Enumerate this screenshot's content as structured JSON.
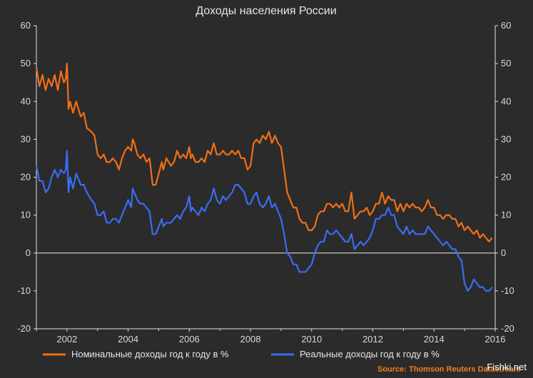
{
  "chart_data": {
    "type": "line",
    "title": "Доходы населения России",
    "ylim": [
      -20,
      60
    ],
    "xlim": [
      2001.0,
      2016.0
    ],
    "y_ticks": [
      -20,
      -10,
      0,
      10,
      20,
      30,
      40,
      50,
      60
    ],
    "x_ticks": [
      2002,
      2004,
      2006,
      2008,
      2010,
      2012,
      2014,
      2016
    ],
    "grid": false,
    "zero_line": true,
    "legend_position": "bottom",
    "colors": {
      "background": "#2b2b2b",
      "axis": "#e0e0e0",
      "text": "#d9d9d9"
    },
    "series": [
      {
        "name": "Номинальные доходы год к году в %",
        "color": "#f36f16",
        "points": [
          [
            2001.0,
            49
          ],
          [
            2001.1,
            44
          ],
          [
            2001.2,
            47
          ],
          [
            2001.3,
            43
          ],
          [
            2001.4,
            46
          ],
          [
            2001.5,
            44
          ],
          [
            2001.6,
            47
          ],
          [
            2001.7,
            43
          ],
          [
            2001.8,
            48
          ],
          [
            2001.9,
            45
          ],
          [
            2001.96,
            46
          ],
          [
            2002.0,
            50
          ],
          [
            2002.05,
            38
          ],
          [
            2002.1,
            40
          ],
          [
            2002.2,
            37
          ],
          [
            2002.3,
            40
          ],
          [
            2002.45,
            36
          ],
          [
            2002.55,
            37
          ],
          [
            2002.65,
            33
          ],
          [
            2002.8,
            32
          ],
          [
            2002.9,
            31
          ],
          [
            2003.0,
            26
          ],
          [
            2003.1,
            25
          ],
          [
            2003.2,
            26
          ],
          [
            2003.3,
            24
          ],
          [
            2003.4,
            24
          ],
          [
            2003.5,
            25
          ],
          [
            2003.6,
            24
          ],
          [
            2003.7,
            22
          ],
          [
            2003.8,
            25
          ],
          [
            2003.9,
            27
          ],
          [
            2004.0,
            28
          ],
          [
            2004.1,
            27
          ],
          [
            2004.15,
            30
          ],
          [
            2004.2,
            29
          ],
          [
            2004.3,
            26
          ],
          [
            2004.4,
            25
          ],
          [
            2004.5,
            26
          ],
          [
            2004.6,
            24
          ],
          [
            2004.7,
            25
          ],
          [
            2004.8,
            18
          ],
          [
            2004.9,
            18
          ],
          [
            2005.0,
            21
          ],
          [
            2005.1,
            24
          ],
          [
            2005.15,
            22
          ],
          [
            2005.25,
            25
          ],
          [
            2005.4,
            23
          ],
          [
            2005.5,
            24
          ],
          [
            2005.6,
            27
          ],
          [
            2005.7,
            25
          ],
          [
            2005.8,
            26
          ],
          [
            2005.9,
            25
          ],
          [
            2006.0,
            28
          ],
          [
            2006.05,
            25
          ],
          [
            2006.1,
            26
          ],
          [
            2006.2,
            24
          ],
          [
            2006.3,
            24
          ],
          [
            2006.4,
            25
          ],
          [
            2006.5,
            24
          ],
          [
            2006.6,
            27
          ],
          [
            2006.7,
            26
          ],
          [
            2006.8,
            29
          ],
          [
            2006.9,
            26
          ],
          [
            2007.0,
            26
          ],
          [
            2007.1,
            27
          ],
          [
            2007.2,
            26
          ],
          [
            2007.3,
            26
          ],
          [
            2007.4,
            27
          ],
          [
            2007.5,
            26
          ],
          [
            2007.6,
            27
          ],
          [
            2007.7,
            25
          ],
          [
            2007.8,
            25
          ],
          [
            2007.9,
            22
          ],
          [
            2008.0,
            23
          ],
          [
            2008.1,
            29
          ],
          [
            2008.2,
            30
          ],
          [
            2008.3,
            29
          ],
          [
            2008.4,
            31
          ],
          [
            2008.5,
            30
          ],
          [
            2008.6,
            32
          ],
          [
            2008.7,
            29
          ],
          [
            2008.8,
            31
          ],
          [
            2008.9,
            29
          ],
          [
            2009.0,
            28
          ],
          [
            2009.1,
            22
          ],
          [
            2009.2,
            16
          ],
          [
            2009.3,
            14
          ],
          [
            2009.4,
            12
          ],
          [
            2009.5,
            12
          ],
          [
            2009.6,
            9
          ],
          [
            2009.7,
            8
          ],
          [
            2009.8,
            8
          ],
          [
            2009.9,
            6
          ],
          [
            2010.0,
            6
          ],
          [
            2010.1,
            7
          ],
          [
            2010.2,
            10
          ],
          [
            2010.3,
            11
          ],
          [
            2010.4,
            11
          ],
          [
            2010.5,
            13
          ],
          [
            2010.6,
            13
          ],
          [
            2010.7,
            12
          ],
          [
            2010.8,
            13
          ],
          [
            2010.9,
            12
          ],
          [
            2011.0,
            13
          ],
          [
            2011.1,
            11
          ],
          [
            2011.2,
            11
          ],
          [
            2011.3,
            16
          ],
          [
            2011.4,
            9
          ],
          [
            2011.5,
            10
          ],
          [
            2011.6,
            11
          ],
          [
            2011.7,
            11
          ],
          [
            2011.8,
            12
          ],
          [
            2011.9,
            10
          ],
          [
            2012.0,
            11
          ],
          [
            2012.1,
            13
          ],
          [
            2012.2,
            13
          ],
          [
            2012.3,
            16
          ],
          [
            2012.4,
            13
          ],
          [
            2012.5,
            15
          ],
          [
            2012.6,
            14
          ],
          [
            2012.7,
            14
          ],
          [
            2012.8,
            11
          ],
          [
            2012.9,
            13
          ],
          [
            2013.0,
            11
          ],
          [
            2013.1,
            13
          ],
          [
            2013.2,
            12
          ],
          [
            2013.3,
            13
          ],
          [
            2013.4,
            12
          ],
          [
            2013.5,
            12
          ],
          [
            2013.6,
            11
          ],
          [
            2013.7,
            12
          ],
          [
            2013.8,
            14
          ],
          [
            2013.9,
            12
          ],
          [
            2014.0,
            12
          ],
          [
            2014.1,
            10
          ],
          [
            2014.2,
            10
          ],
          [
            2014.3,
            9
          ],
          [
            2014.4,
            10
          ],
          [
            2014.5,
            10
          ],
          [
            2014.6,
            9
          ],
          [
            2014.7,
            9
          ],
          [
            2014.8,
            7
          ],
          [
            2014.9,
            8
          ],
          [
            2015.0,
            6
          ],
          [
            2015.1,
            7
          ],
          [
            2015.2,
            6
          ],
          [
            2015.3,
            5
          ],
          [
            2015.4,
            6
          ],
          [
            2015.5,
            4
          ],
          [
            2015.6,
            5
          ],
          [
            2015.7,
            4
          ],
          [
            2015.8,
            3
          ],
          [
            2015.9,
            4
          ]
        ]
      },
      {
        "name": "Реальные доходы год к году в %",
        "color": "#3a6df5",
        "points": [
          [
            2001.0,
            23
          ],
          [
            2001.1,
            19
          ],
          [
            2001.2,
            19
          ],
          [
            2001.3,
            16
          ],
          [
            2001.4,
            17
          ],
          [
            2001.5,
            20
          ],
          [
            2001.6,
            22
          ],
          [
            2001.7,
            20
          ],
          [
            2001.8,
            22
          ],
          [
            2001.9,
            21
          ],
          [
            2001.96,
            22
          ],
          [
            2002.0,
            27
          ],
          [
            2002.05,
            16
          ],
          [
            2002.1,
            20
          ],
          [
            2002.2,
            17
          ],
          [
            2002.3,
            21
          ],
          [
            2002.45,
            18
          ],
          [
            2002.55,
            18
          ],
          [
            2002.65,
            16
          ],
          [
            2002.8,
            14
          ],
          [
            2002.9,
            13
          ],
          [
            2003.0,
            10
          ],
          [
            2003.1,
            10
          ],
          [
            2003.2,
            11
          ],
          [
            2003.3,
            8
          ],
          [
            2003.4,
            8
          ],
          [
            2003.5,
            9
          ],
          [
            2003.6,
            9
          ],
          [
            2003.7,
            8
          ],
          [
            2003.8,
            10
          ],
          [
            2003.9,
            12
          ],
          [
            2004.0,
            14
          ],
          [
            2004.1,
            12
          ],
          [
            2004.15,
            17
          ],
          [
            2004.2,
            16
          ],
          [
            2004.3,
            14
          ],
          [
            2004.4,
            13
          ],
          [
            2004.5,
            13
          ],
          [
            2004.6,
            12
          ],
          [
            2004.7,
            11
          ],
          [
            2004.8,
            5
          ],
          [
            2004.9,
            5
          ],
          [
            2005.0,
            7
          ],
          [
            2005.1,
            9
          ],
          [
            2005.15,
            7
          ],
          [
            2005.25,
            8
          ],
          [
            2005.4,
            8
          ],
          [
            2005.5,
            9
          ],
          [
            2005.6,
            10
          ],
          [
            2005.7,
            9
          ],
          [
            2005.8,
            11
          ],
          [
            2005.9,
            12
          ],
          [
            2006.0,
            15
          ],
          [
            2006.05,
            11
          ],
          [
            2006.1,
            12
          ],
          [
            2006.2,
            11
          ],
          [
            2006.3,
            10
          ],
          [
            2006.4,
            12
          ],
          [
            2006.5,
            11
          ],
          [
            2006.6,
            13
          ],
          [
            2006.7,
            14
          ],
          [
            2006.8,
            17
          ],
          [
            2006.9,
            14
          ],
          [
            2007.0,
            13
          ],
          [
            2007.1,
            15
          ],
          [
            2007.2,
            14
          ],
          [
            2007.3,
            15
          ],
          [
            2007.4,
            16
          ],
          [
            2007.5,
            18
          ],
          [
            2007.6,
            18
          ],
          [
            2007.7,
            17
          ],
          [
            2007.8,
            16
          ],
          [
            2007.9,
            13
          ],
          [
            2008.0,
            13
          ],
          [
            2008.1,
            15
          ],
          [
            2008.2,
            16
          ],
          [
            2008.3,
            13
          ],
          [
            2008.4,
            12
          ],
          [
            2008.5,
            13
          ],
          [
            2008.6,
            15
          ],
          [
            2008.7,
            12
          ],
          [
            2008.8,
            13
          ],
          [
            2008.9,
            11
          ],
          [
            2009.0,
            9
          ],
          [
            2009.1,
            5
          ],
          [
            2009.2,
            0
          ],
          [
            2009.3,
            -1
          ],
          [
            2009.4,
            -3
          ],
          [
            2009.5,
            -3
          ],
          [
            2009.6,
            -5
          ],
          [
            2009.7,
            -5
          ],
          [
            2009.8,
            -5
          ],
          [
            2009.9,
            -4
          ],
          [
            2010.0,
            -3
          ],
          [
            2010.1,
            0
          ],
          [
            2010.2,
            2
          ],
          [
            2010.3,
            3
          ],
          [
            2010.4,
            3
          ],
          [
            2010.5,
            6
          ],
          [
            2010.6,
            5
          ],
          [
            2010.7,
            5
          ],
          [
            2010.8,
            6
          ],
          [
            2010.9,
            5
          ],
          [
            2011.0,
            4
          ],
          [
            2011.1,
            3
          ],
          [
            2011.2,
            3
          ],
          [
            2011.3,
            5
          ],
          [
            2011.4,
            1
          ],
          [
            2011.5,
            2
          ],
          [
            2011.6,
            3
          ],
          [
            2011.7,
            2
          ],
          [
            2011.8,
            3
          ],
          [
            2011.9,
            4
          ],
          [
            2012.0,
            6
          ],
          [
            2012.1,
            9
          ],
          [
            2012.2,
            9
          ],
          [
            2012.3,
            10
          ],
          [
            2012.4,
            10
          ],
          [
            2012.5,
            12
          ],
          [
            2012.6,
            10
          ],
          [
            2012.7,
            10
          ],
          [
            2012.8,
            7
          ],
          [
            2012.9,
            6
          ],
          [
            2013.0,
            5
          ],
          [
            2013.1,
            7
          ],
          [
            2013.2,
            5
          ],
          [
            2013.3,
            6
          ],
          [
            2013.4,
            5
          ],
          [
            2013.5,
            5
          ],
          [
            2013.6,
            5
          ],
          [
            2013.7,
            5
          ],
          [
            2013.8,
            7
          ],
          [
            2013.9,
            6
          ],
          [
            2014.0,
            5
          ],
          [
            2014.1,
            4
          ],
          [
            2014.2,
            3
          ],
          [
            2014.3,
            2
          ],
          [
            2014.4,
            3
          ],
          [
            2014.5,
            2
          ],
          [
            2014.6,
            1
          ],
          [
            2014.7,
            1
          ],
          [
            2014.8,
            -1
          ],
          [
            2014.9,
            -2
          ],
          [
            2015.0,
            -8
          ],
          [
            2015.1,
            -10
          ],
          [
            2015.2,
            -9
          ],
          [
            2015.3,
            -7
          ],
          [
            2015.4,
            -8
          ],
          [
            2015.5,
            -9
          ],
          [
            2015.6,
            -9
          ],
          [
            2015.7,
            -10
          ],
          [
            2015.8,
            -10
          ],
          [
            2015.9,
            -9
          ]
        ]
      }
    ],
    "source": "Source: Thomson Reuters Datastream",
    "watermark": "Fishki.net"
  }
}
